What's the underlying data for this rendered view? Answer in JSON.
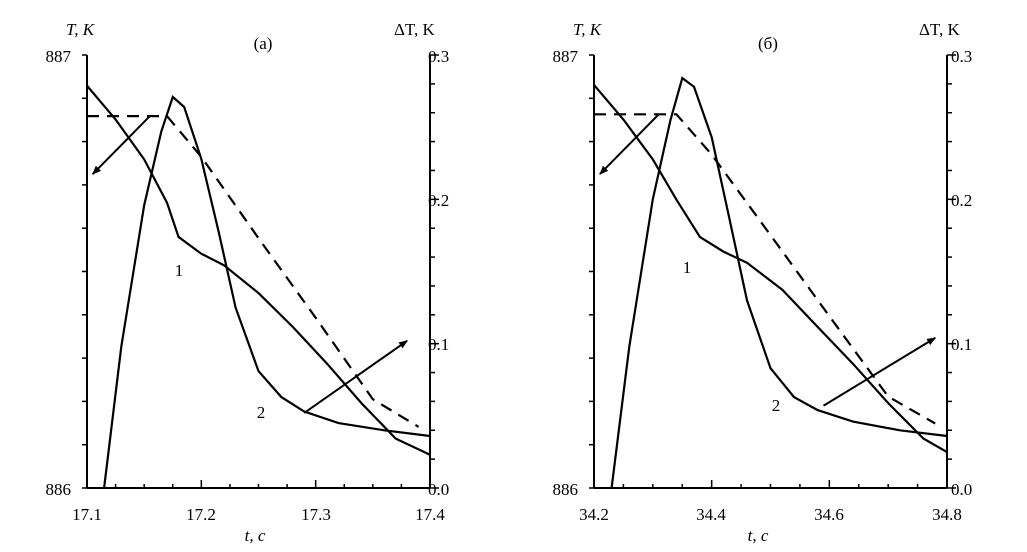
{
  "chart_data": [
    {
      "type": "line",
      "title": "(а)",
      "xlabel": "t, с",
      "ylabel_left": "T, K",
      "ylabel_right": "ΔT, K",
      "xlim": [
        17.1,
        17.4
      ],
      "ylim_left": [
        886,
        887
      ],
      "ylim_right": [
        0.0,
        0.3
      ],
      "x_ticks": [
        "17.1",
        "17.2",
        "17.3",
        "17.4"
      ],
      "y_left_ticks": [
        "886",
        "887"
      ],
      "y_right_ticks": [
        "0.0",
        "0.1",
        "0.2",
        "0.3"
      ],
      "grid": false,
      "series": [
        {
          "name": "1",
          "axis": "left",
          "style": "solid",
          "x": [
            17.1,
            17.125,
            17.15,
            17.17,
            17.18,
            17.2,
            17.22,
            17.25,
            17.28,
            17.31,
            17.34,
            17.37,
            17.4
          ],
          "y": [
            886.929,
            886.851,
            886.759,
            886.659,
            886.58,
            886.541,
            886.514,
            886.45,
            886.372,
            886.287,
            886.196,
            886.114,
            886.077
          ]
        },
        {
          "name": "",
          "axis": "left",
          "style": "dashed",
          "x": [
            17.1,
            17.155,
            17.17,
            17.2,
            17.25,
            17.3,
            17.35,
            17.39
          ],
          "y": [
            886.859,
            886.859,
            886.859,
            886.765,
            886.577,
            886.393,
            886.205,
            886.141
          ]
        },
        {
          "name": "2",
          "axis": "right",
          "style": "solid",
          "x": [
            17.115,
            17.13,
            17.15,
            17.165,
            17.175,
            17.185,
            17.2,
            17.215,
            17.23,
            17.25,
            17.27,
            17.29,
            17.32,
            17.36,
            17.4
          ],
          "y": [
            0.0,
            0.098,
            0.196,
            0.247,
            0.271,
            0.264,
            0.228,
            0.178,
            0.125,
            0.081,
            0.063,
            0.053,
            0.045,
            0.04,
            0.036
          ]
        }
      ],
      "annotations": [
        {
          "label": "1",
          "x": 17.18,
          "y_left": 886.49
        },
        {
          "label": "2",
          "x": 17.25,
          "y_right": 0.052
        }
      ],
      "arrows": [
        {
          "from": [
            17.155,
            886.859
          ],
          "to": [
            17.105,
            886.725
          ],
          "axis": "left"
        },
        {
          "from": [
            17.29,
            0.052
          ],
          "to": [
            17.38,
            0.102
          ],
          "axis": "right"
        }
      ]
    },
    {
      "type": "line",
      "title": "(б)",
      "xlabel": "t, с",
      "ylabel_left": "T, K",
      "ylabel_right": "ΔT, K",
      "xlim": [
        34.2,
        34.8
      ],
      "ylim_left": [
        886,
        887
      ],
      "ylim_right": [
        0.0,
        0.3
      ],
      "x_ticks": [
        "34.2",
        "34.4",
        "34.6",
        "34.8"
      ],
      "y_left_ticks": [
        "886",
        "887"
      ],
      "y_right_ticks": [
        "0.0",
        "0.1",
        "0.2",
        "0.3"
      ],
      "grid": false,
      "series": [
        {
          "name": "1",
          "axis": "left",
          "style": "solid",
          "x": [
            34.2,
            34.25,
            34.3,
            34.34,
            34.38,
            34.42,
            34.46,
            34.52,
            34.58,
            34.64,
            34.7,
            34.76,
            34.8
          ],
          "y": [
            886.931,
            886.851,
            886.759,
            886.666,
            886.58,
            886.546,
            886.52,
            886.458,
            886.372,
            886.287,
            886.196,
            886.114,
            886.083
          ]
        },
        {
          "name": "",
          "axis": "left",
          "style": "dashed",
          "x": [
            34.2,
            34.31,
            34.34,
            34.4,
            34.5,
            34.6,
            34.7,
            34.78
          ],
          "y": [
            886.863,
            886.863,
            886.863,
            886.77,
            886.584,
            886.397,
            886.211,
            886.149
          ]
        },
        {
          "name": "2",
          "axis": "right",
          "style": "solid",
          "x": [
            34.23,
            34.26,
            34.3,
            34.33,
            34.35,
            34.37,
            34.4,
            34.43,
            34.46,
            34.5,
            34.54,
            34.58,
            34.64,
            34.72,
            34.8
          ],
          "y": [
            0.0,
            0.098,
            0.2,
            0.255,
            0.284,
            0.278,
            0.243,
            0.187,
            0.13,
            0.083,
            0.063,
            0.054,
            0.046,
            0.04,
            0.036
          ]
        }
      ],
      "annotations": [
        {
          "label": "1",
          "x": 34.36,
          "y_left": 886.493
        },
        {
          "label": "2",
          "x": 34.54,
          "y_right": 0.059
        }
      ],
      "arrows": [
        {
          "from": [
            34.31,
            886.863
          ],
          "to": [
            34.21,
            886.725
          ],
          "axis": "left"
        },
        {
          "from": [
            34.59,
            0.057
          ],
          "to": [
            34.78,
            0.104
          ],
          "axis": "right"
        }
      ]
    }
  ]
}
